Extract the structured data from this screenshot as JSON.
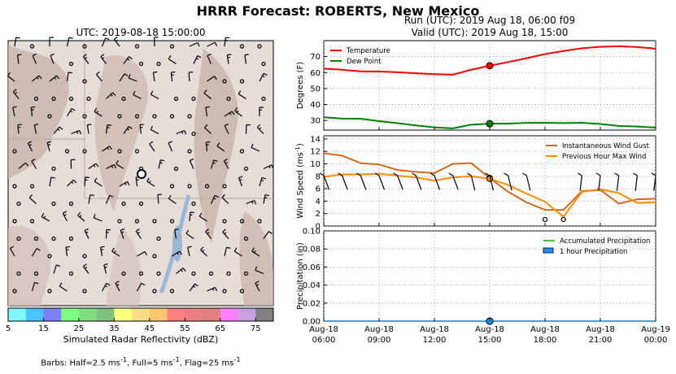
{
  "main_title": "HRRR Forecast: ROBERTS, New Mexico",
  "map": {
    "title": "UTC: 2019-08-18 15:00:00",
    "colorbar": {
      "label": "Simulated Radar Reflectivity (dBZ)",
      "ticks": [
        "5",
        "15",
        "25",
        "35",
        "45",
        "55",
        "65",
        "75"
      ],
      "colors": [
        "#7ff7ff",
        "#49c4ff",
        "#7f7ff7",
        "#7fff7f",
        "#7fdf7f",
        "#7fc17f",
        "#ffff7f",
        "#f5de86",
        "#ffc571",
        "#ff7f7f",
        "#ea7f7f",
        "#df7f7f",
        "#ff7fff",
        "#c8a0e0",
        "#808080"
      ]
    },
    "barb_note_prefix": "Barbs: Half=2.5 ms",
    "barb_note_mid1": ", Full=5 ms",
    "barb_note_mid2": ", Flag=25 ms",
    "barb_note_sup": "-1"
  },
  "run_line1": "Run (UTC): 2019 Aug 18, 06:00 f09",
  "run_line2": "Valid (UTC): 2019 Aug 18, 15:00",
  "chart_data": [
    {
      "type": "line",
      "ylabel": "Degrees (F)",
      "ylim": [
        24,
        80
      ],
      "yticks": [
        30,
        40,
        50,
        60,
        70
      ],
      "x_hours": [
        6,
        7,
        8,
        9,
        10,
        11,
        12,
        13,
        14,
        15,
        16,
        17,
        18,
        19,
        20,
        21,
        22,
        23,
        24
      ],
      "series": [
        {
          "name": "Temperature",
          "color": "#ff0000",
          "values": [
            62.5,
            61.8,
            60.8,
            60.7,
            60.2,
            59.6,
            59.0,
            58.7,
            61.8,
            64.3,
            66.6,
            69.0,
            71.6,
            73.5,
            75.2,
            76.2,
            76.5,
            76.0,
            75.0
          ]
        },
        {
          "name": "Dew Point",
          "color": "#008000",
          "values": [
            32.0,
            31.2,
            31.1,
            29.6,
            28.3,
            26.9,
            25.7,
            25.1,
            27.4,
            28.0,
            28.1,
            28.5,
            28.6,
            28.4,
            28.6,
            27.8,
            26.6,
            26.2,
            25.6
          ]
        }
      ],
      "marker_hour": 15,
      "grid": true,
      "legend": "top-left"
    },
    {
      "type": "line",
      "ylabel": "Wind Speed (ms",
      "ylabel_sup": "-1",
      "ylim": [
        0,
        14.5
      ],
      "yticks": [
        0,
        2,
        4,
        6,
        8,
        10,
        12,
        14
      ],
      "x_hours": [
        6,
        7,
        8,
        9,
        10,
        11,
        12,
        13,
        14,
        15,
        16,
        17,
        18,
        19,
        20,
        21,
        22,
        23,
        24
      ],
      "series": [
        {
          "name": "Instantaneous Wind Gust",
          "color": "#d2691e",
          "values": [
            11.7,
            11.3,
            10.1,
            9.9,
            9.0,
            8.7,
            8.5,
            10.0,
            10.1,
            7.7,
            5.5,
            3.8,
            2.6,
            2.6,
            5.6,
            5.8,
            3.6,
            4.3,
            4.4
          ]
        },
        {
          "name": "Previous Hour Max Wind",
          "color": "#ff8c00",
          "values": [
            7.9,
            8.3,
            8.3,
            8.4,
            8.1,
            7.8,
            7.3,
            7.8,
            8.0,
            7.6,
            6.6,
            5.2,
            3.9,
            1.5,
            5.5,
            5.9,
            5.3,
            3.7,
            3.8
          ]
        }
      ],
      "marker_hour": 15,
      "grid": true,
      "legend": "top-right"
    },
    {
      "type": "line",
      "ylabel": "Precipitation (in)",
      "ylim": [
        0,
        0.1
      ],
      "yticks": [
        "0.00",
        "0.02",
        "0.04",
        "0.06",
        "0.08",
        "0.10"
      ],
      "x_hours": [
        6,
        7,
        8,
        9,
        10,
        11,
        12,
        13,
        14,
        15,
        16,
        17,
        18,
        19,
        20,
        21,
        22,
        23,
        24
      ],
      "series": [
        {
          "name": "Accumulated Precipitation",
          "color": "#32cd32",
          "values": [
            0,
            0,
            0,
            0,
            0,
            0,
            0,
            0,
            0,
            0,
            0,
            0,
            0,
            0,
            0,
            0,
            0,
            0,
            0
          ]
        },
        {
          "name": "1 hour Precipitation",
          "color": "#1e90ff",
          "values": [
            0,
            0,
            0,
            0,
            0,
            0,
            0,
            0,
            0,
            0,
            0,
            0,
            0,
            0,
            0,
            0,
            0,
            0,
            0
          ]
        }
      ],
      "marker_hour": 15,
      "grid": true,
      "legend": "top-right",
      "xtick_labels": [
        [
          "Aug-18",
          "06:00"
        ],
        [
          "Aug-18",
          "09:00"
        ],
        [
          "Aug-18",
          "12:00"
        ],
        [
          "Aug-18",
          "15:00"
        ],
        [
          "Aug-18",
          "18:00"
        ],
        [
          "Aug-18",
          "21:00"
        ],
        [
          "Aug-19",
          "00:00"
        ]
      ]
    }
  ]
}
